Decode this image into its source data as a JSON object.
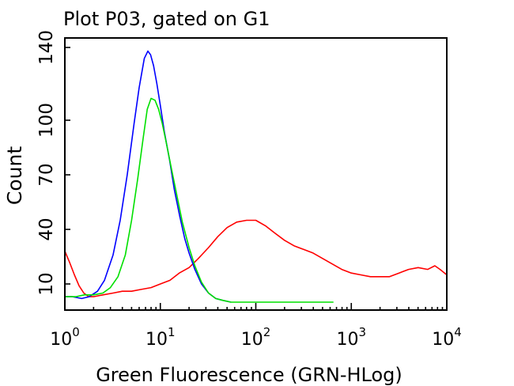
{
  "chart_data": {
    "type": "line",
    "title": "Plot P03, gated on G1",
    "xlabel": "Green Fluorescence (GRN-HLog)",
    "ylabel": "Count",
    "x_scale": "log",
    "xlim": [
      1,
      10000
    ],
    "ylim": [
      0,
      140
    ],
    "y_ticks": [
      {
        "value": 10,
        "label": "10"
      },
      {
        "value": 40,
        "label": "40"
      },
      {
        "value": 70,
        "label": "70"
      },
      {
        "value": 100,
        "label": "100"
      },
      {
        "value": 140,
        "label": "140"
      }
    ],
    "x_ticks": [
      {
        "value": 1,
        "base": "10",
        "exp": "0"
      },
      {
        "value": 10,
        "base": "10",
        "exp": "1"
      },
      {
        "value": 100,
        "base": "10",
        "exp": "2"
      },
      {
        "value": 1000,
        "base": "10",
        "exp": "3"
      },
      {
        "value": 10000,
        "base": "10",
        "exp": "4"
      }
    ],
    "grid": false,
    "series": [
      {
        "color": "#ff0000",
        "x": [
          1,
          1.12,
          1.26,
          1.41,
          1.58,
          1.78,
          2,
          2.5,
          3.2,
          4,
          5,
          6.3,
          8,
          10,
          12.6,
          15.8,
          20,
          25,
          32,
          40,
          50,
          63,
          80,
          100,
          126,
          158,
          200,
          251,
          316,
          398,
          501,
          631,
          794,
          1000,
          1259,
          1585,
          1995,
          2512,
          3162,
          3981,
          5012,
          6310,
          7500,
          8500,
          10000
        ],
        "y": [
          28,
          22,
          15,
          9,
          5,
          3,
          3,
          4,
          5,
          6,
          6,
          7,
          8,
          10,
          12,
          16,
          19,
          24,
          30,
          36,
          41,
          44,
          45,
          45,
          42,
          38,
          34,
          31,
          29,
          27,
          24,
          21,
          18,
          16,
          15,
          14,
          14,
          14,
          16,
          18,
          19,
          18,
          20,
          18,
          15
        ]
      },
      {
        "color": "#0000ff",
        "x": [
          1,
          1.2,
          1.5,
          1.8,
          2.2,
          2.6,
          3.2,
          3.8,
          4.5,
          5.3,
          6,
          6.8,
          7.4,
          7.9,
          8.5,
          9.2,
          10,
          11,
          12.5,
          14,
          16,
          18,
          20,
          23,
          27,
          32,
          38,
          45,
          55
        ],
        "y": [
          3,
          3,
          2,
          3,
          6,
          12,
          26,
          45,
          70,
          98,
          118,
          134,
          138,
          136,
          130,
          120,
          108,
          94,
          78,
          62,
          47,
          35,
          27,
          18,
          10,
          5,
          2,
          1,
          0
        ]
      },
      {
        "color": "#00e000",
        "x": [
          1,
          1.3,
          1.6,
          2,
          2.5,
          3,
          3.6,
          4.3,
          5,
          5.8,
          6.6,
          7.3,
          8,
          8.8,
          9.6,
          10.5,
          11.5,
          13,
          15,
          17,
          20,
          23,
          27,
          32,
          38,
          45,
          55,
          80,
          150,
          300,
          650
        ],
        "y": [
          3,
          3,
          4,
          4,
          5,
          8,
          14,
          26,
          45,
          68,
          90,
          106,
          112,
          111,
          106,
          98,
          88,
          74,
          58,
          44,
          30,
          20,
          11,
          5,
          2,
          1,
          0,
          0,
          0,
          0,
          0
        ]
      }
    ]
  }
}
